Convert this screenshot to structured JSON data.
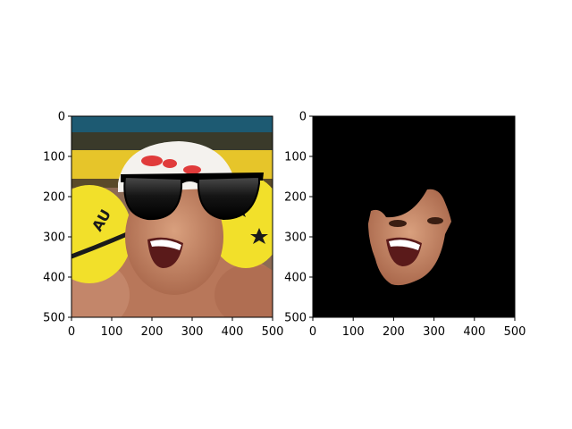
{
  "figure": {
    "background": "#ffffff",
    "panels": [
      {
        "name": "left",
        "content": "swimmer photo with sunglasses overlay"
      },
      {
        "name": "right",
        "content": "face-only mask on black background"
      }
    ]
  },
  "chart_data": [
    {
      "type": "image",
      "title": "",
      "xlabel": "",
      "ylabel": "",
      "xlim": [
        0,
        500
      ],
      "ylim": [
        500,
        0
      ],
      "xticks": [
        0,
        100,
        200,
        300,
        400,
        500
      ],
      "yticks": [
        0,
        100,
        200,
        300,
        400,
        500
      ],
      "xtick_labels": [
        "0",
        "100",
        "200",
        "300",
        "400",
        "500"
      ],
      "ytick_labels": [
        "0",
        "100",
        "200",
        "300",
        "400",
        "500"
      ],
      "grid": false,
      "colors": {
        "cap_yellow": "#f2e02a",
        "cap_white": "#f4f2ee",
        "skin": "#c98a6a",
        "lenses": "#111111",
        "pool_edge": "#1d5a72"
      }
    },
    {
      "type": "image",
      "title": "",
      "xlabel": "",
      "ylabel": "",
      "xlim": [
        0,
        500
      ],
      "ylim": [
        500,
        0
      ],
      "xticks": [
        0,
        100,
        200,
        300,
        400,
        500
      ],
      "yticks": [
        0,
        100,
        200,
        300,
        400,
        500
      ],
      "xtick_labels": [
        "0",
        "100",
        "200",
        "300",
        "400",
        "500"
      ],
      "ytick_labels": [
        "0",
        "100",
        "200",
        "300",
        "400",
        "500"
      ],
      "grid": false,
      "colors": {
        "background": "#000000",
        "skin": "#c98a6a"
      }
    }
  ]
}
